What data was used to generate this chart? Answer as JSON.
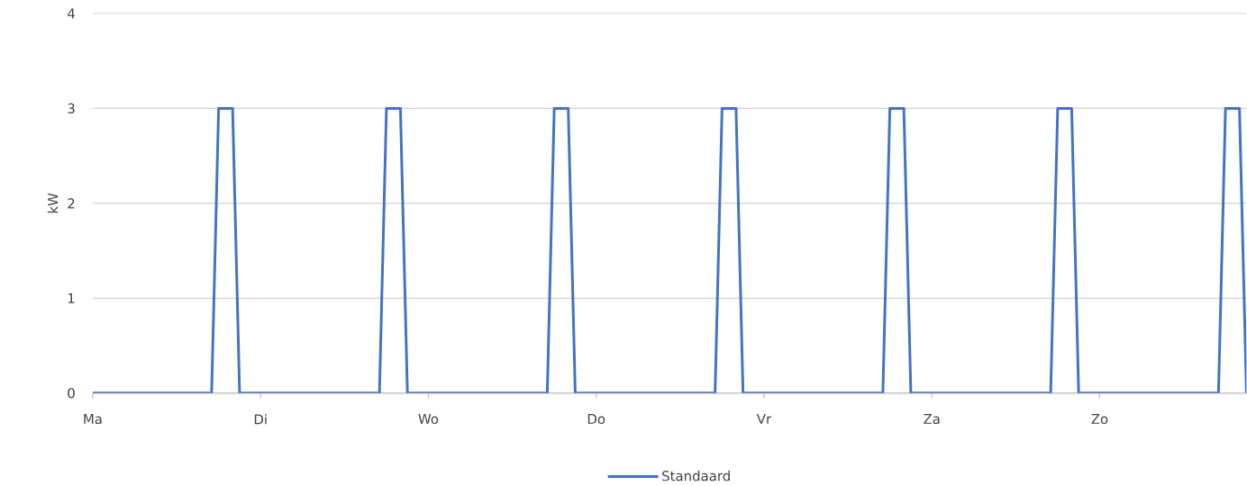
{
  "chart_data": {
    "type": "line",
    "ylabel": "kW",
    "categories": [
      "Ma",
      null,
      null,
      null,
      null,
      null,
      null,
      null,
      null,
      null,
      null,
      null,
      null,
      null,
      null,
      null,
      null,
      null,
      null,
      null,
      null,
      null,
      null,
      null,
      "Di",
      null,
      null,
      null,
      null,
      null,
      null,
      null,
      null,
      null,
      null,
      null,
      null,
      null,
      null,
      null,
      null,
      null,
      null,
      null,
      null,
      null,
      null,
      null,
      "Wo",
      null,
      null,
      null,
      null,
      null,
      null,
      null,
      null,
      null,
      null,
      null,
      null,
      null,
      null,
      null,
      null,
      null,
      null,
      null,
      null,
      null,
      null,
      null,
      "Do",
      null,
      null,
      null,
      null,
      null,
      null,
      null,
      null,
      null,
      null,
      null,
      null,
      null,
      null,
      null,
      null,
      null,
      null,
      null,
      null,
      null,
      null,
      null,
      "Vr",
      null,
      null,
      null,
      null,
      null,
      null,
      null,
      null,
      null,
      null,
      null,
      null,
      null,
      null,
      null,
      null,
      null,
      null,
      null,
      null,
      null,
      null,
      null,
      "Za",
      null,
      null,
      null,
      null,
      null,
      null,
      null,
      null,
      null,
      null,
      null,
      null,
      null,
      null,
      null,
      null,
      null,
      null,
      null,
      null,
      null,
      null,
      null,
      "Zo",
      null,
      null,
      null,
      null,
      null,
      null,
      null,
      null,
      null,
      null,
      null,
      null,
      null,
      null,
      null,
      null,
      null,
      null,
      null,
      null,
      null
    ],
    "series": [
      {
        "name": "Standaard",
        "color": "#4472c4",
        "values": [
          0,
          0,
          0,
          0,
          0,
          0,
          0,
          0,
          0,
          0,
          0,
          0,
          0,
          0,
          0,
          0,
          0,
          0,
          3,
          3,
          3,
          0,
          0,
          0,
          0,
          0,
          0,
          0,
          0,
          0,
          0,
          0,
          0,
          0,
          0,
          0,
          0,
          0,
          0,
          0,
          0,
          0,
          3,
          3,
          3,
          0,
          0,
          0,
          0,
          0,
          0,
          0,
          0,
          0,
          0,
          0,
          0,
          0,
          0,
          0,
          0,
          0,
          0,
          0,
          0,
          0,
          3,
          3,
          3,
          0,
          0,
          0,
          0,
          0,
          0,
          0,
          0,
          0,
          0,
          0,
          0,
          0,
          0,
          0,
          0,
          0,
          0,
          0,
          0,
          0,
          3,
          3,
          3,
          0,
          0,
          0,
          0,
          0,
          0,
          0,
          0,
          0,
          0,
          0,
          0,
          0,
          0,
          0,
          0,
          0,
          0,
          0,
          0,
          0,
          3,
          3,
          3,
          0,
          0,
          0,
          0,
          0,
          0,
          0,
          0,
          0,
          0,
          0,
          0,
          0,
          0,
          0,
          0,
          0,
          0,
          0,
          0,
          0,
          3,
          3,
          3,
          0,
          0,
          0,
          0,
          0,
          0,
          0,
          0,
          0,
          0,
          0,
          0,
          0,
          0,
          0,
          0,
          0,
          0,
          0,
          0,
          0,
          3,
          3,
          3,
          0
        ]
      }
    ],
    "ylim": [
      0,
      4
    ],
    "yticks": [
      0,
      1,
      2,
      3,
      4
    ],
    "grid": "y",
    "legend": "bottom",
    "marker": "none",
    "line_style": "solid"
  }
}
